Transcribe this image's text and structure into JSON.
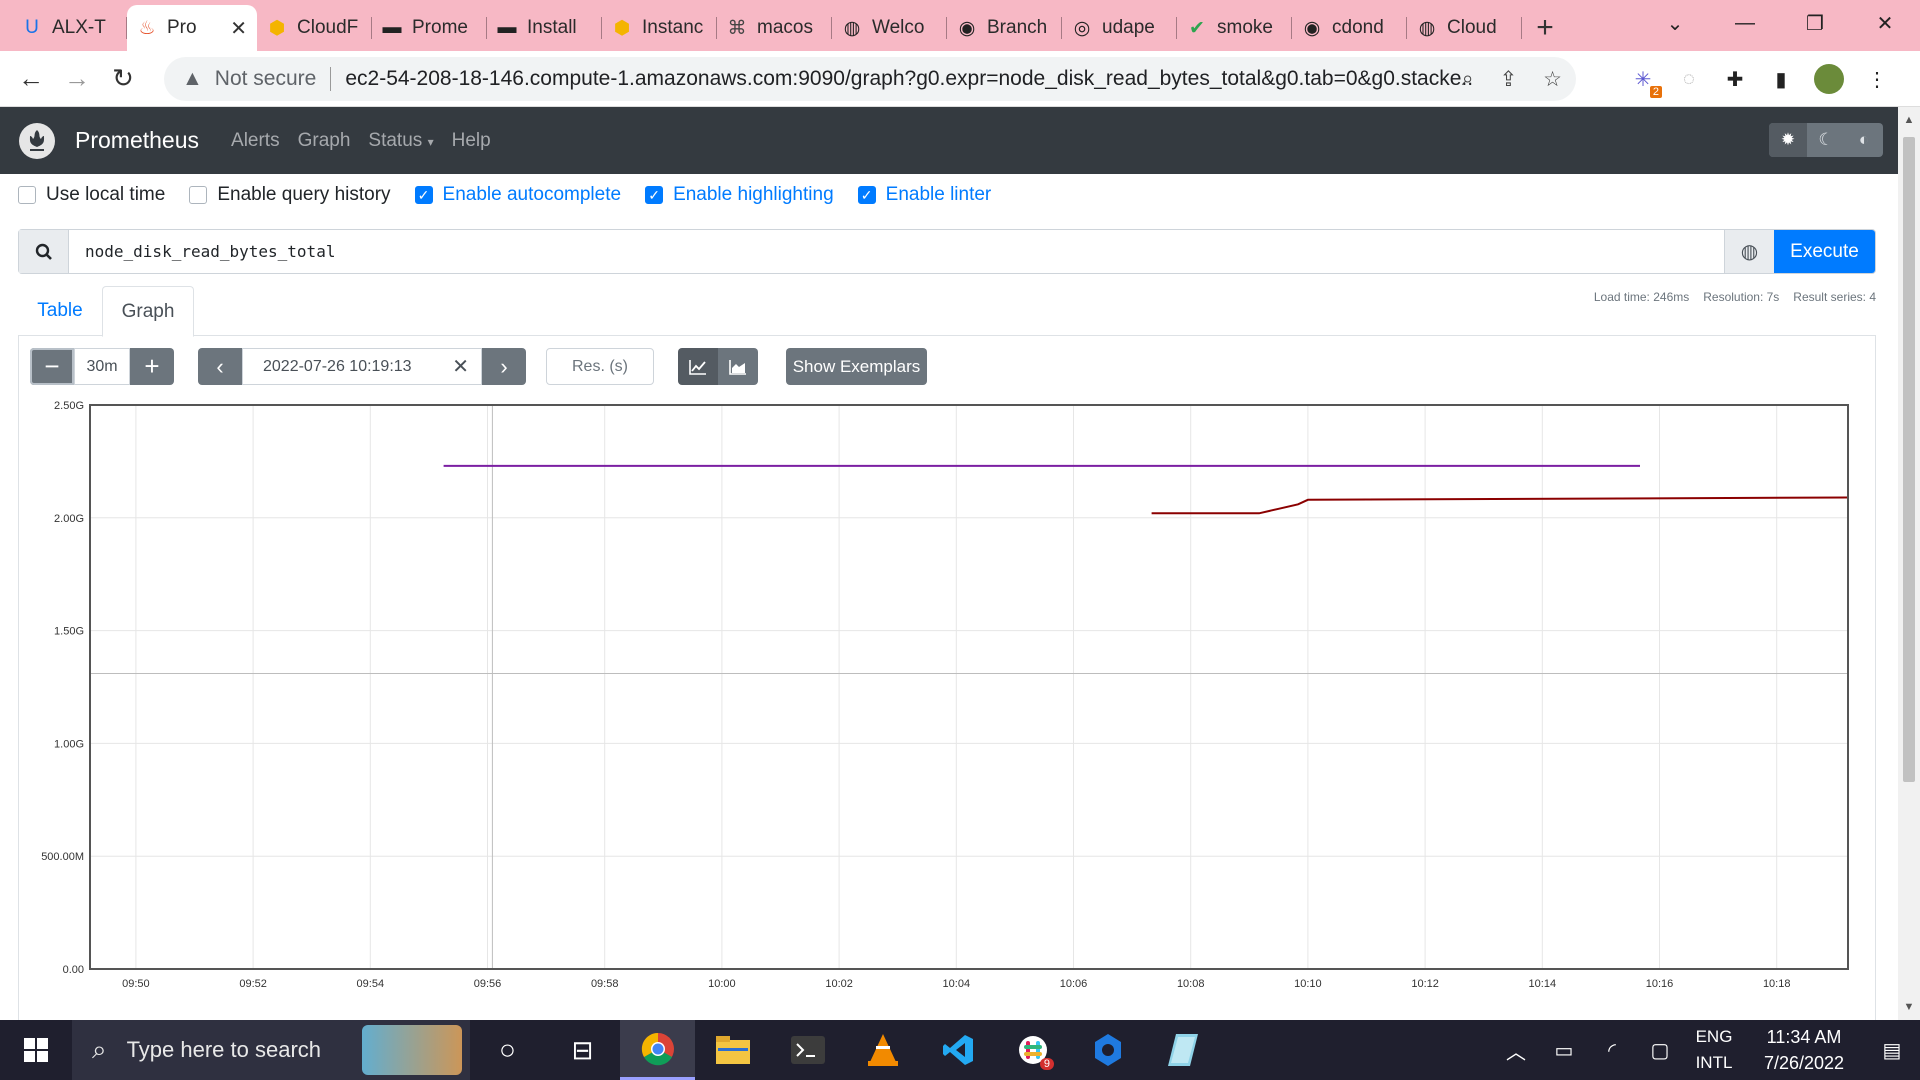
{
  "browser": {
    "tabs": [
      {
        "label": "ALX-T",
        "icon": "udacity-icon",
        "color": "#1a73e8"
      },
      {
        "label": "Pro",
        "icon": "prometheus-icon",
        "color": "#e6522c",
        "active": true
      },
      {
        "label": "CloudF",
        "icon": "aws-icon",
        "color": "#f4b400"
      },
      {
        "label": "Prome",
        "icon": "terminal-icon",
        "color": "#222"
      },
      {
        "label": "Install",
        "icon": "terminal-icon",
        "color": "#222"
      },
      {
        "label": "Instanc",
        "icon": "aws-icon",
        "color": "#f4b400"
      },
      {
        "label": "macos",
        "icon": "command-icon",
        "color": "#444"
      },
      {
        "label": "Welco",
        "icon": "globe-icon",
        "color": "#222"
      },
      {
        "label": "Branch",
        "icon": "github-icon",
        "color": "#222"
      },
      {
        "label": "udape",
        "icon": "circleci-icon",
        "color": "#222"
      },
      {
        "label": "smoke",
        "icon": "check-circle-icon",
        "color": "#2ea44f"
      },
      {
        "label": "cdond",
        "icon": "github-icon",
        "color": "#222"
      },
      {
        "label": "Cloud",
        "icon": "globe-icon",
        "color": "#222"
      }
    ],
    "address": {
      "security_label": "Not secure",
      "url": "ec2-54-208-18-146.compute-1.amazonaws.com:9090/graph?g0.expr=node_disk_read_bytes_total&g0.tab=0&g0.stacke..."
    },
    "extension_badge": "2"
  },
  "prometheus": {
    "brand": "Prometheus",
    "nav": [
      "Alerts",
      "Graph",
      "Status",
      "Help"
    ],
    "options": [
      {
        "label": "Use local time",
        "checked": false
      },
      {
        "label": "Enable query history",
        "checked": false
      },
      {
        "label": "Enable autocomplete",
        "checked": true
      },
      {
        "label": "Enable highlighting",
        "checked": true
      },
      {
        "label": "Enable linter",
        "checked": true
      }
    ],
    "query": "node_disk_read_bytes_total",
    "execute_label": "Execute",
    "tabs": {
      "table": "Table",
      "graph": "Graph"
    },
    "stats": {
      "load_time": "Load time: 246ms",
      "resolution": "Resolution: 7s",
      "result_series": "Result series: 4"
    },
    "controls": {
      "range": "30m",
      "end_time": "2022-07-26 10:19:13",
      "resolution_placeholder": "Res. (s)",
      "show_exemplars": "Show Exemplars"
    }
  },
  "chart_data": {
    "type": "line",
    "title": "",
    "xlabel": "",
    "ylabel": "",
    "xlim": [
      "09:49:13",
      "10:19:13"
    ],
    "ylim": [
      0,
      2.5
    ],
    "x_ticks": [
      "09:50",
      "09:52",
      "09:54",
      "09:56",
      "09:58",
      "10:00",
      "10:02",
      "10:04",
      "10:06",
      "10:08",
      "10:10",
      "10:12",
      "10:14",
      "10:16",
      "10:18"
    ],
    "y_ticks": [
      "0.00",
      "500.00M",
      "1.00G",
      "1.50G",
      "2.00G",
      "2.50G"
    ],
    "y_unit": "G",
    "grid": true,
    "series": [
      {
        "color": "#7b1fa2",
        "x": [
          "09:55:15",
          "10:15:40"
        ],
        "y": [
          2.23,
          2.23
        ]
      },
      {
        "color": "#8b0000",
        "x": [
          "10:07:20",
          "10:09:10",
          "10:09:30",
          "10:09:50",
          "10:10:00",
          "10:19:13"
        ],
        "y": [
          2.02,
          2.02,
          2.04,
          2.06,
          2.08,
          2.09
        ]
      },
      {
        "color": "#00695c",
        "x": [
          "09:55:15",
          "10:15:40"
        ],
        "y": [
          0.0,
          0.0
        ]
      },
      {
        "color": "#2e7d32",
        "x": [
          "10:07:20",
          "10:19:13"
        ],
        "y": [
          0.0,
          0.0
        ]
      }
    ]
  },
  "taskbar": {
    "search_placeholder": "Type here to search",
    "lang_line1": "ENG",
    "lang_line2": "INTL",
    "time": "11:34 AM",
    "date": "7/26/2022",
    "slack_badge": "9"
  }
}
